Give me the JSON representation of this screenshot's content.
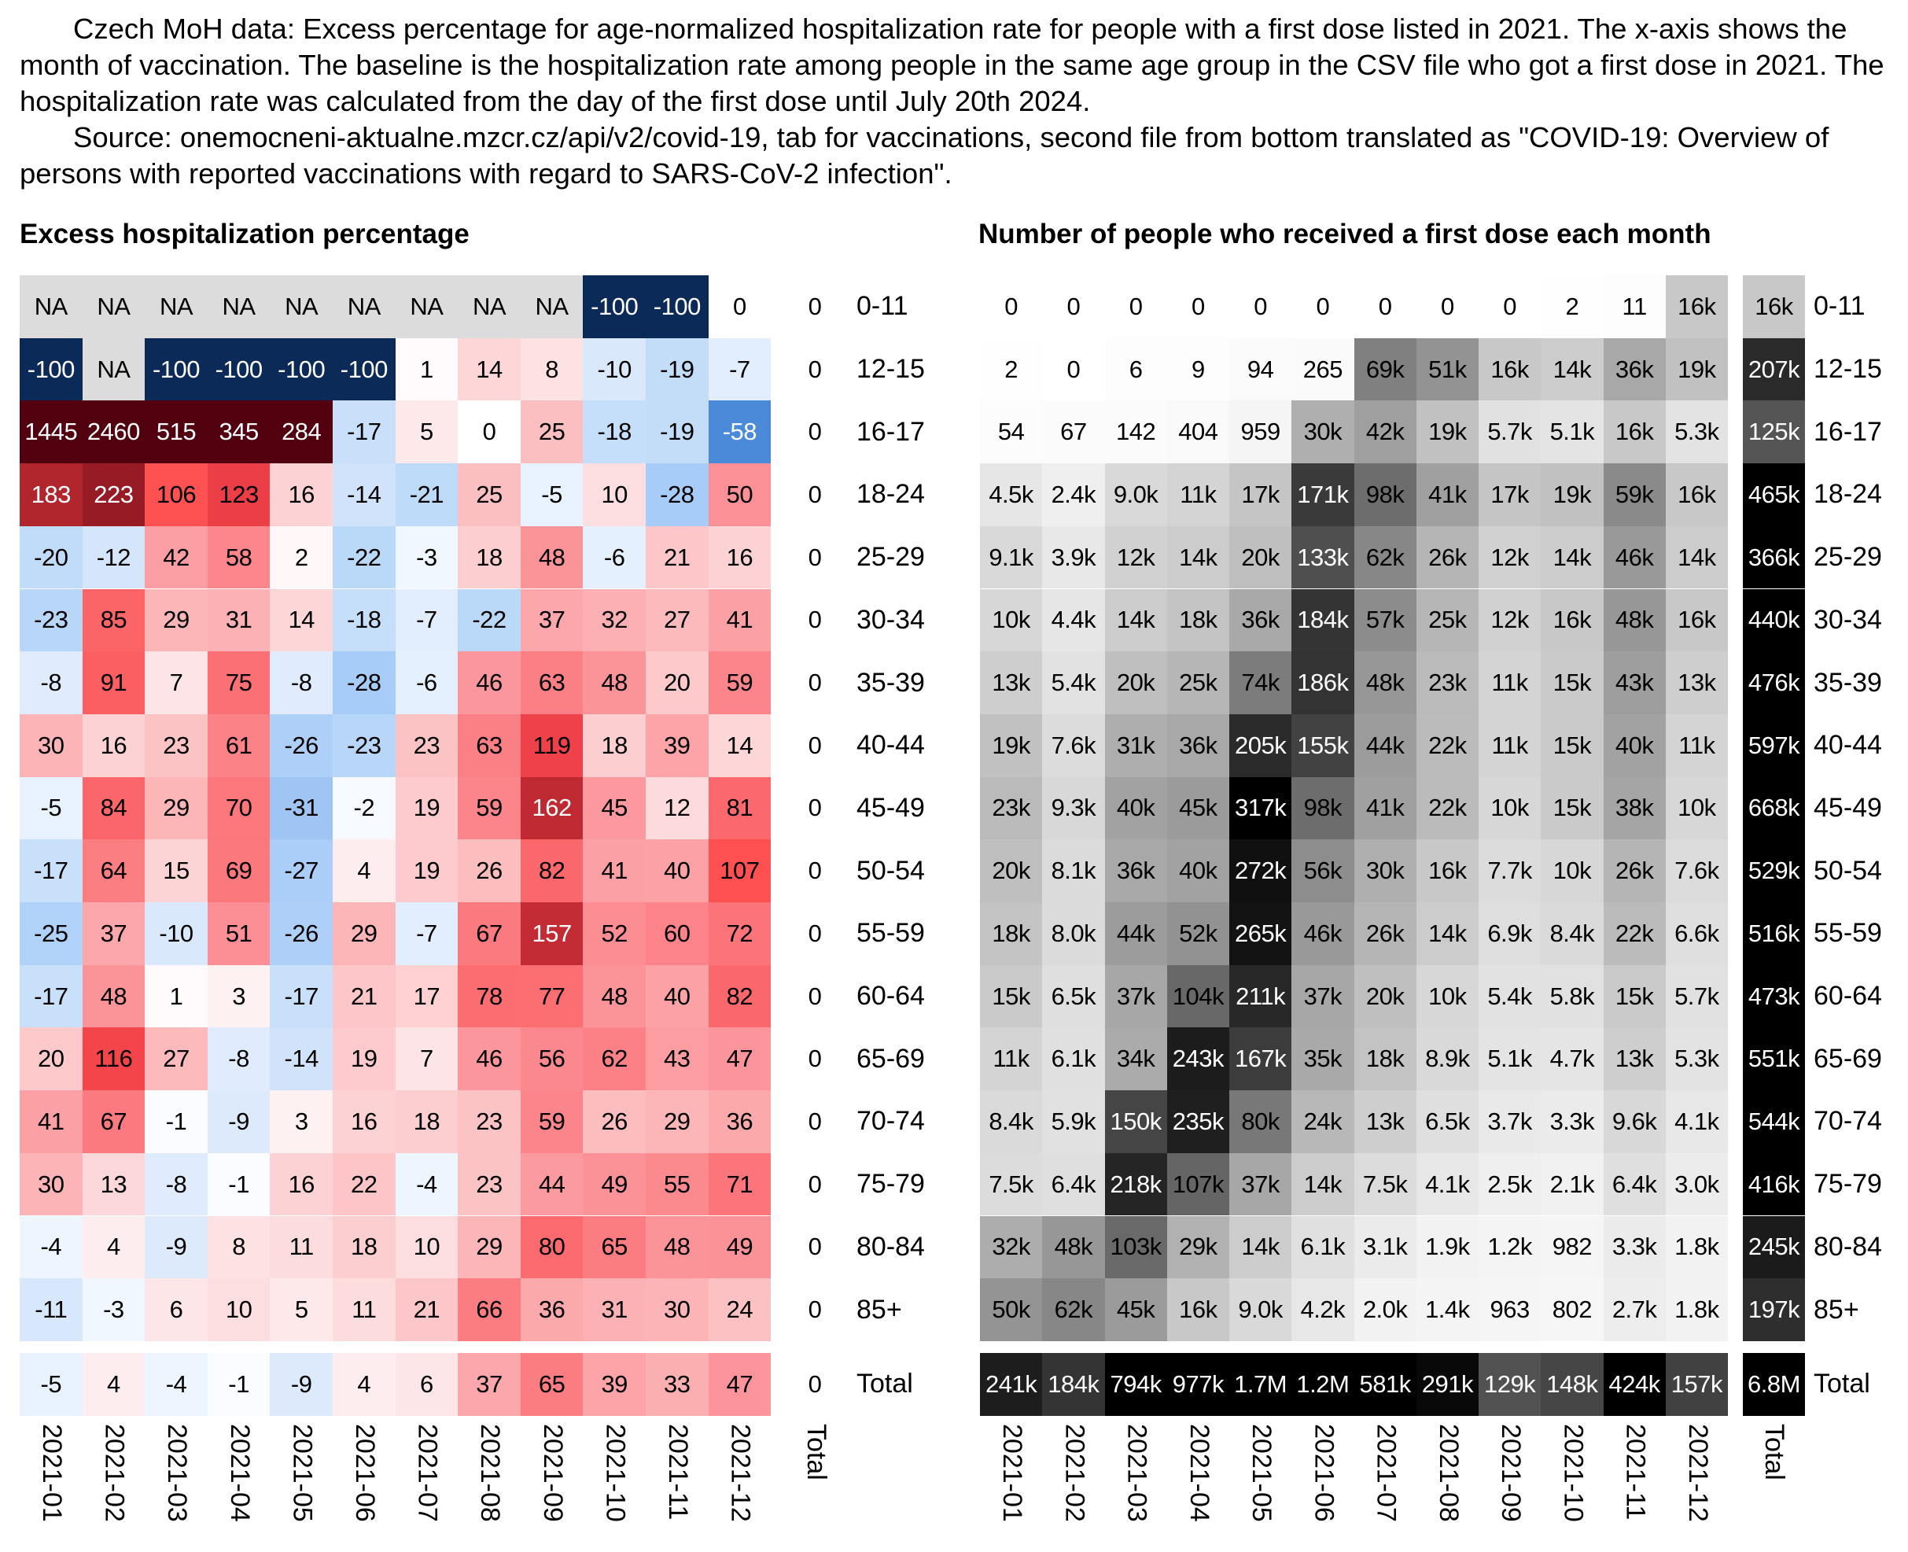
{
  "header": {
    "paragraph1": "Czech MoH data: Excess percentage for age-normalized hospitalization rate for people with a first dose listed in 2021. The x-axis shows the month of vaccination. The baseline is the hospitalization rate among people in the same age group in the CSV file who got a first dose in 2021. The hospitalization rate was calculated from the day of the first dose until July 20th 2024.",
    "paragraph2": "Source: onemocneni-aktualne.mzcr.cz/api/v2/covid-19, tab for vaccinations, second file from bottom translated as \"COVID-19: Overview of persons with reported vaccinations with regard to SARS-CoV-2 infection\"."
  },
  "chart_data": [
    {
      "type": "heatmap",
      "title": "Excess hospitalization percentage",
      "x": [
        "2021-01",
        "2021-02",
        "2021-03",
        "2021-04",
        "2021-05",
        "2021-06",
        "2021-07",
        "2021-08",
        "2021-09",
        "2021-10",
        "2021-11",
        "2021-12"
      ],
      "x_total_label": "Total",
      "y": [
        "0-11",
        "12-15",
        "16-17",
        "18-24",
        "25-29",
        "30-34",
        "35-39",
        "40-44",
        "45-49",
        "50-54",
        "55-59",
        "60-64",
        "65-69",
        "70-74",
        "75-79",
        "80-84",
        "85+"
      ],
      "y_total_label": "Total",
      "na_label": "NA",
      "values": [
        [
          null,
          null,
          null,
          null,
          null,
          null,
          null,
          null,
          null,
          -100,
          -100,
          0
        ],
        [
          -100,
          null,
          -100,
          -100,
          -100,
          -100,
          1,
          14,
          8,
          -10,
          -19,
          -7
        ],
        [
          1445,
          2460,
          515,
          345,
          284,
          -17,
          5,
          0,
          25,
          -18,
          -19,
          -58
        ],
        [
          183,
          223,
          106,
          123,
          16,
          -14,
          -21,
          25,
          -5,
          10,
          -28,
          50
        ],
        [
          -20,
          -12,
          42,
          58,
          2,
          -22,
          -3,
          18,
          48,
          -6,
          21,
          16
        ],
        [
          -23,
          85,
          29,
          31,
          14,
          -18,
          -7,
          -22,
          37,
          32,
          27,
          41
        ],
        [
          -8,
          91,
          7,
          75,
          -8,
          -28,
          -6,
          46,
          63,
          48,
          20,
          59
        ],
        [
          30,
          16,
          23,
          61,
          -26,
          -23,
          23,
          63,
          119,
          18,
          39,
          14
        ],
        [
          -5,
          84,
          29,
          70,
          -31,
          -2,
          19,
          59,
          162,
          45,
          12,
          81
        ],
        [
          -17,
          64,
          15,
          69,
          -27,
          4,
          19,
          26,
          82,
          41,
          40,
          107
        ],
        [
          -25,
          37,
          -10,
          51,
          -26,
          29,
          -7,
          67,
          157,
          52,
          60,
          72
        ],
        [
          -17,
          48,
          1,
          3,
          -17,
          21,
          17,
          78,
          77,
          48,
          40,
          82
        ],
        [
          20,
          116,
          27,
          -8,
          -14,
          19,
          7,
          46,
          56,
          62,
          43,
          47
        ],
        [
          41,
          67,
          -1,
          -9,
          3,
          16,
          18,
          23,
          59,
          26,
          29,
          36
        ],
        [
          30,
          13,
          -8,
          -1,
          16,
          22,
          -4,
          23,
          44,
          49,
          55,
          71
        ],
        [
          -4,
          4,
          -9,
          8,
          11,
          18,
          10,
          29,
          80,
          65,
          48,
          49
        ],
        [
          -11,
          -3,
          6,
          10,
          5,
          11,
          21,
          66,
          36,
          31,
          30,
          24
        ]
      ],
      "row_totals": [
        0,
        0,
        0,
        0,
        0,
        0,
        0,
        0,
        0,
        0,
        0,
        0,
        0,
        0,
        0,
        0,
        0
      ],
      "total_row": [
        -5,
        4,
        -4,
        -1,
        -9,
        4,
        6,
        37,
        65,
        39,
        33,
        47
      ],
      "grand_total": 0,
      "colors": {
        "negative": "#0c2a58",
        "positive": "#520010",
        "neutral": "#ffffff",
        "na": "#dcdcdc"
      }
    },
    {
      "type": "heatmap",
      "title": "Number of people who received a first dose each month",
      "x": [
        "2021-01",
        "2021-02",
        "2021-03",
        "2021-04",
        "2021-05",
        "2021-06",
        "2021-07",
        "2021-08",
        "2021-09",
        "2021-10",
        "2021-11",
        "2021-12"
      ],
      "x_total_label": "Total",
      "y": [
        "0-11",
        "12-15",
        "16-17",
        "18-24",
        "25-29",
        "30-34",
        "35-39",
        "40-44",
        "45-49",
        "50-54",
        "55-59",
        "60-64",
        "65-69",
        "70-74",
        "75-79",
        "80-84",
        "85+"
      ],
      "y_total_label": "Total",
      "values": [
        [
          "0",
          "0",
          "0",
          "0",
          "0",
          "0",
          "0",
          "0",
          "0",
          "2",
          "11",
          "16k"
        ],
        [
          "2",
          "0",
          "6",
          "9",
          "94",
          "265",
          "69k",
          "51k",
          "16k",
          "14k",
          "36k",
          "19k"
        ],
        [
          "54",
          "67",
          "142",
          "404",
          "959",
          "30k",
          "42k",
          "19k",
          "5.7k",
          "5.1k",
          "16k",
          "5.3k"
        ],
        [
          "4.5k",
          "2.4k",
          "9.0k",
          "11k",
          "17k",
          "171k",
          "98k",
          "41k",
          "17k",
          "19k",
          "59k",
          "16k"
        ],
        [
          "9.1k",
          "3.9k",
          "12k",
          "14k",
          "20k",
          "133k",
          "62k",
          "26k",
          "12k",
          "14k",
          "46k",
          "14k"
        ],
        [
          "10k",
          "4.4k",
          "14k",
          "18k",
          "36k",
          "184k",
          "57k",
          "25k",
          "12k",
          "16k",
          "48k",
          "16k"
        ],
        [
          "13k",
          "5.4k",
          "20k",
          "25k",
          "74k",
          "186k",
          "48k",
          "23k",
          "11k",
          "15k",
          "43k",
          "13k"
        ],
        [
          "19k",
          "7.6k",
          "31k",
          "36k",
          "205k",
          "155k",
          "44k",
          "22k",
          "11k",
          "15k",
          "40k",
          "11k"
        ],
        [
          "23k",
          "9.3k",
          "40k",
          "45k",
          "317k",
          "98k",
          "41k",
          "22k",
          "10k",
          "15k",
          "38k",
          "10k"
        ],
        [
          "20k",
          "8.1k",
          "36k",
          "40k",
          "272k",
          "56k",
          "30k",
          "16k",
          "7.7k",
          "10k",
          "26k",
          "7.6k"
        ],
        [
          "18k",
          "8.0k",
          "44k",
          "52k",
          "265k",
          "46k",
          "26k",
          "14k",
          "6.9k",
          "8.4k",
          "22k",
          "6.6k"
        ],
        [
          "15k",
          "6.5k",
          "37k",
          "104k",
          "211k",
          "37k",
          "20k",
          "10k",
          "5.4k",
          "5.8k",
          "15k",
          "5.7k"
        ],
        [
          "11k",
          "6.1k",
          "34k",
          "243k",
          "167k",
          "35k",
          "18k",
          "8.9k",
          "5.1k",
          "4.7k",
          "13k",
          "5.3k"
        ],
        [
          "8.4k",
          "5.9k",
          "150k",
          "235k",
          "80k",
          "24k",
          "13k",
          "6.5k",
          "3.7k",
          "3.3k",
          "9.6k",
          "4.1k"
        ],
        [
          "7.5k",
          "6.4k",
          "218k",
          "107k",
          "37k",
          "14k",
          "7.5k",
          "4.1k",
          "2.5k",
          "2.1k",
          "6.4k",
          "3.0k"
        ],
        [
          "32k",
          "48k",
          "103k",
          "29k",
          "14k",
          "6.1k",
          "3.1k",
          "1.9k",
          "1.2k",
          "982",
          "3.3k",
          "1.8k"
        ],
        [
          "50k",
          "62k",
          "45k",
          "16k",
          "9.0k",
          "4.2k",
          "2.0k",
          "1.4k",
          "963",
          "802",
          "2.7k",
          "1.8k"
        ]
      ],
      "row_totals": [
        "16k",
        "207k",
        "125k",
        "465k",
        "366k",
        "440k",
        "476k",
        "597k",
        "668k",
        "529k",
        "516k",
        "473k",
        "551k",
        "544k",
        "416k",
        "245k",
        "197k"
      ],
      "total_row": [
        "241k",
        "184k",
        "794k",
        "977k",
        "1.7M",
        "1.2M",
        "581k",
        "291k",
        "129k",
        "148k",
        "424k",
        "157k"
      ],
      "grand_total": "6.8M",
      "colors": {
        "low": "#ffffff",
        "high": "#000000"
      }
    }
  ]
}
